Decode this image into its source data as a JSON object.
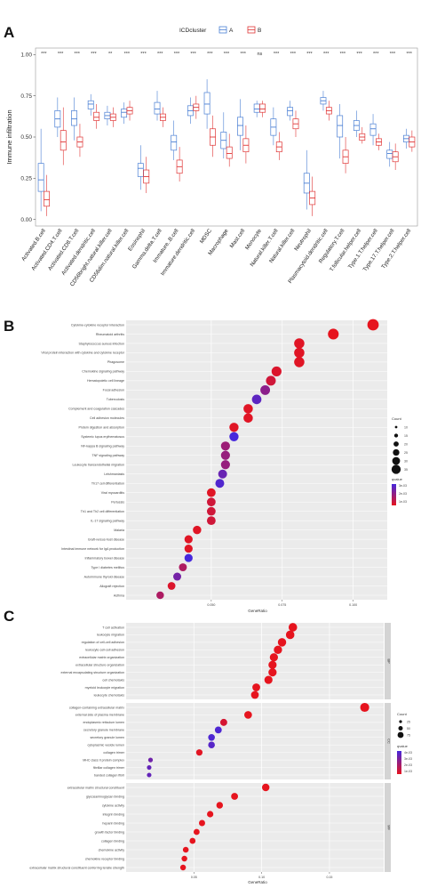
{
  "figure": {
    "panels": [
      "A",
      "B",
      "C"
    ]
  },
  "chart_data": [
    {
      "type": "box",
      "panel": "A",
      "ylabel": "Immune infiltration",
      "yticks": [
        0.0,
        0.25,
        0.5,
        0.75,
        1.0
      ],
      "ytick_labels": [
        "0.00",
        "0.25",
        "0.50",
        "0.75",
        "1.00"
      ],
      "ylim": [
        -0.04,
        1.04
      ],
      "legend": {
        "title": "ICDcluster",
        "items": [
          "A",
          "B"
        ],
        "position": "top"
      },
      "colors": {
        "A": "#4a7fd4",
        "B": "#e03535"
      },
      "categories": [
        "Activated.B.cell",
        "Activated.CD4.T.cell",
        "Activated.CD8.T.cell",
        "Activated.dendritic.cell",
        "CD56bright.natural.killer.cell",
        "CD56dim.natural.killer.cell",
        "Eosinophil",
        "Gamma.delta.T.cell",
        "Immature..B.cell",
        "Immature.dendritic.cell",
        "MDSC",
        "Macrophage",
        "Mast.cell",
        "Monocyte",
        "Natural.killer.T.cell",
        "Natural.killer.cell",
        "Neutrophil",
        "Plasmacytoid.dendritic.cell",
        "Regulatory.T.cell",
        "T.follicular.helper.cell",
        "Type.1.T.helper.cell",
        "Type.17.T.helper.cell",
        "Type.2.T.helper.cell"
      ],
      "significance": [
        "***",
        "***",
        "***",
        "***",
        "**",
        "***",
        "***",
        "***",
        "***",
        "***",
        "***",
        "***",
        "***",
        "ns",
        "***",
        "***",
        "***",
        "***",
        "***",
        "***",
        "***",
        "***",
        "***"
      ],
      "series": [
        {
          "name": "A",
          "boxes": [
            [
              0.05,
              0.17,
              0.24,
              0.34,
              0.55
            ],
            [
              0.5,
              0.56,
              0.61,
              0.66,
              0.74
            ],
            [
              0.48,
              0.57,
              0.61,
              0.66,
              0.74
            ],
            [
              0.63,
              0.67,
              0.7,
              0.72,
              0.76
            ],
            [
              0.57,
              0.61,
              0.63,
              0.65,
              0.69
            ],
            [
              0.58,
              0.62,
              0.65,
              0.67,
              0.71
            ],
            [
              0.18,
              0.26,
              0.31,
              0.34,
              0.45
            ],
            [
              0.6,
              0.64,
              0.67,
              0.71,
              0.78
            ],
            [
              0.36,
              0.42,
              0.47,
              0.51,
              0.6
            ],
            [
              0.58,
              0.63,
              0.66,
              0.69,
              0.74
            ],
            [
              0.55,
              0.64,
              0.7,
              0.77,
              0.85
            ],
            [
              0.37,
              0.43,
              0.48,
              0.53,
              0.65
            ],
            [
              0.42,
              0.51,
              0.57,
              0.62,
              0.73
            ],
            [
              0.62,
              0.65,
              0.67,
              0.7,
              0.72
            ],
            [
              0.45,
              0.51,
              0.56,
              0.61,
              0.68
            ],
            [
              0.6,
              0.63,
              0.66,
              0.68,
              0.72
            ],
            [
              0.06,
              0.16,
              0.22,
              0.28,
              0.42
            ],
            [
              0.66,
              0.7,
              0.72,
              0.74,
              0.78
            ],
            [
              0.37,
              0.5,
              0.57,
              0.63,
              0.7
            ],
            [
              0.5,
              0.54,
              0.57,
              0.6,
              0.66
            ],
            [
              0.45,
              0.51,
              0.55,
              0.58,
              0.64
            ],
            [
              0.32,
              0.37,
              0.4,
              0.42,
              0.47
            ],
            [
              0.43,
              0.47,
              0.49,
              0.51,
              0.55
            ]
          ]
        },
        {
          "name": "B",
          "boxes": [
            [
              0.02,
              0.08,
              0.12,
              0.17,
              0.27
            ],
            [
              0.33,
              0.42,
              0.47,
              0.54,
              0.68
            ],
            [
              0.38,
              0.44,
              0.47,
              0.5,
              0.58
            ],
            [
              0.55,
              0.6,
              0.62,
              0.65,
              0.7
            ],
            [
              0.56,
              0.6,
              0.62,
              0.64,
              0.68
            ],
            [
              0.6,
              0.64,
              0.66,
              0.68,
              0.72
            ],
            [
              0.16,
              0.22,
              0.26,
              0.3,
              0.38
            ],
            [
              0.56,
              0.6,
              0.62,
              0.64,
              0.68
            ],
            [
              0.23,
              0.28,
              0.32,
              0.36,
              0.44
            ],
            [
              0.61,
              0.66,
              0.68,
              0.7,
              0.75
            ],
            [
              0.38,
              0.45,
              0.5,
              0.55,
              0.63
            ],
            [
              0.32,
              0.37,
              0.4,
              0.44,
              0.52
            ],
            [
              0.34,
              0.41,
              0.45,
              0.49,
              0.57
            ],
            [
              0.62,
              0.65,
              0.67,
              0.7,
              0.72
            ],
            [
              0.36,
              0.41,
              0.44,
              0.47,
              0.53
            ],
            [
              0.5,
              0.55,
              0.58,
              0.61,
              0.66
            ],
            [
              0.02,
              0.09,
              0.13,
              0.17,
              0.26
            ],
            [
              0.6,
              0.64,
              0.66,
              0.68,
              0.72
            ],
            [
              0.28,
              0.34,
              0.38,
              0.42,
              0.5
            ],
            [
              0.46,
              0.48,
              0.5,
              0.52,
              0.56
            ],
            [
              0.42,
              0.45,
              0.47,
              0.49,
              0.52
            ],
            [
              0.3,
              0.35,
              0.38,
              0.41,
              0.46
            ],
            [
              0.41,
              0.44,
              0.47,
              0.5,
              0.54
            ]
          ]
        }
      ]
    },
    {
      "type": "scatter",
      "panel": "B",
      "xlabel": "GeneRatio",
      "xticks": [
        0.05,
        0.075,
        0.1
      ],
      "xtick_labels": [
        "0.050",
        "0.075",
        "0.100"
      ],
      "xlim": [
        0.02,
        0.112
      ],
      "legend": {
        "count_title": "Count",
        "count_values": [
          "10",
          "15",
          "20",
          "25",
          "30",
          "35"
        ],
        "color_title": "qvalue",
        "color_values": [
          "1e-03",
          "2e-03",
          "3e-03"
        ]
      },
      "terms": [
        "Cytokine-cytokine receptor interaction",
        "Rheumatoid arthritis",
        "Staphylococcus aureus infection",
        "Viral protein interaction with cytokine and cytokine receptor",
        "Phagosome",
        "Chemokine signaling pathway",
        "Hematopoietic cell lineage",
        "Focal adhesion",
        "Tuberculosis",
        "Complement and coagulation cascades",
        "Cell adhesion molecules",
        "Protein digestion and absorption",
        "Systemic lupus erythematosus",
        "NF-kappa B signaling pathway",
        "TNF signaling pathway",
        "Leukocyte transendothelial migration",
        "Leishmaniasis",
        "Th17 cell differentiation",
        "Viral myocarditis",
        "Pertussis",
        "Th1 and Th2 cell differentiation",
        "IL-17 signaling pathway",
        "Malaria",
        "Graft-versus-host disease",
        "Intestinal immune network for IgA production",
        "Inflammatory bowel disease",
        "Type I diabetes mellitus",
        "Autoimmune thyroid disease",
        "Allograft rejection",
        "Asthma"
      ],
      "gene_ratio": [
        0.107,
        0.093,
        0.081,
        0.081,
        0.081,
        0.073,
        0.071,
        0.069,
        0.066,
        0.063,
        0.063,
        0.058,
        0.058,
        0.055,
        0.055,
        0.055,
        0.054,
        0.053,
        0.05,
        0.05,
        0.05,
        0.05,
        0.045,
        0.042,
        0.042,
        0.042,
        0.04,
        0.038,
        0.036,
        0.032
      ],
      "count": [
        36,
        31,
        27,
        27,
        27,
        25,
        24,
        23,
        22,
        21,
        21,
        20,
        20,
        19,
        19,
        19,
        18,
        18,
        17,
        17,
        17,
        17,
        15,
        14,
        14,
        14,
        13,
        13,
        12,
        11
      ],
      "qvalue": [
        0.0001,
        0.0002,
        0.0003,
        0.0003,
        0.0003,
        0.0004,
        0.0006,
        0.0018,
        0.0026,
        0.0003,
        0.0003,
        0.0003,
        0.0031,
        0.0015,
        0.0016,
        0.0016,
        0.0024,
        0.0028,
        0.0003,
        0.0006,
        0.0006,
        0.0006,
        0.0003,
        0.0003,
        0.0003,
        0.0031,
        0.0012,
        0.0022,
        0.0004,
        0.0012
      ]
    },
    {
      "type": "scatter",
      "panel": "C",
      "xlabel": "GeneRatio",
      "xticks": [
        0.05,
        0.1,
        0.15
      ],
      "xtick_labels": [
        "0.05",
        "0.10",
        "0.15"
      ],
      "xlim": [
        0.0,
        0.19
      ],
      "legend": {
        "count_title": "Count",
        "count_values": [
          "25",
          "50",
          "75"
        ],
        "color_title": "qvalue",
        "color_values": [
          "1e-03",
          "2e-03",
          "3e-03",
          "4e-03"
        ]
      },
      "facets": [
        {
          "name": "BP",
          "terms": [
            "T cell activation",
            "leukocyte migration",
            "regulation of cell-cell adhesion",
            "leukocyte cell-cell adhesion",
            "extracellular matrix organization",
            "extracellular structure organization",
            "external encapsulating structure organization",
            "cell chemotaxis",
            "myeloid leukocyte migration",
            "leukocyte chemotaxis"
          ],
          "gene_ratio": [
            0.123,
            0.121,
            0.115,
            0.112,
            0.109,
            0.108,
            0.108,
            0.105,
            0.096,
            0.095
          ],
          "count": [
            70,
            69,
            66,
            64,
            62,
            62,
            62,
            60,
            55,
            54
          ],
          "qvalue": [
            0.0001,
            0.0001,
            0.0001,
            0.0001,
            0.0001,
            0.0001,
            0.0001,
            0.0001,
            0.0001,
            0.0001
          ]
        },
        {
          "name": "CC",
          "terms": [
            "collagen-containing extracellular matrix",
            "external side of plasma membrane",
            "endoplasmic reticulum lumen",
            "secretory granule membrane",
            "secretory granule lumen",
            "cytoplasmic vesicle lumen",
            "collagen trimer",
            "MHC class II protein complex",
            "fibrillar collagen trimer",
            "banded collagen fibril"
          ],
          "gene_ratio": [
            0.176,
            0.09,
            0.072,
            0.068,
            0.063,
            0.063,
            0.054,
            0.018,
            0.017,
            0.017
          ],
          "count": [
            80,
            52,
            40,
            38,
            35,
            35,
            30,
            10,
            9,
            9
          ],
          "qvalue": [
            0.0001,
            0.0001,
            0.0006,
            0.0038,
            0.0038,
            0.0036,
            0.0003,
            0.003,
            0.0033,
            0.0033
          ]
        },
        {
          "name": "MF",
          "terms": [
            "extracellular matrix structural constituent",
            "glycosaminoglycan binding",
            "cytokine activity",
            "integrin binding",
            "heparin binding",
            "growth factor binding",
            "collagen binding",
            "chemokine activity",
            "chemokine receptor binding",
            "extracellular matrix structural constituent conferring tensile strength"
          ],
          "gene_ratio": [
            0.103,
            0.08,
            0.069,
            0.062,
            0.056,
            0.052,
            0.049,
            0.044,
            0.043,
            0.042
          ],
          "count": [
            48,
            38,
            33,
            30,
            27,
            25,
            24,
            22,
            21,
            21
          ],
          "qvalue": [
            0.0001,
            0.0001,
            0.0001,
            0.0001,
            0.0001,
            0.0001,
            0.0001,
            0.0001,
            0.0001,
            0.0001
          ]
        }
      ]
    }
  ]
}
